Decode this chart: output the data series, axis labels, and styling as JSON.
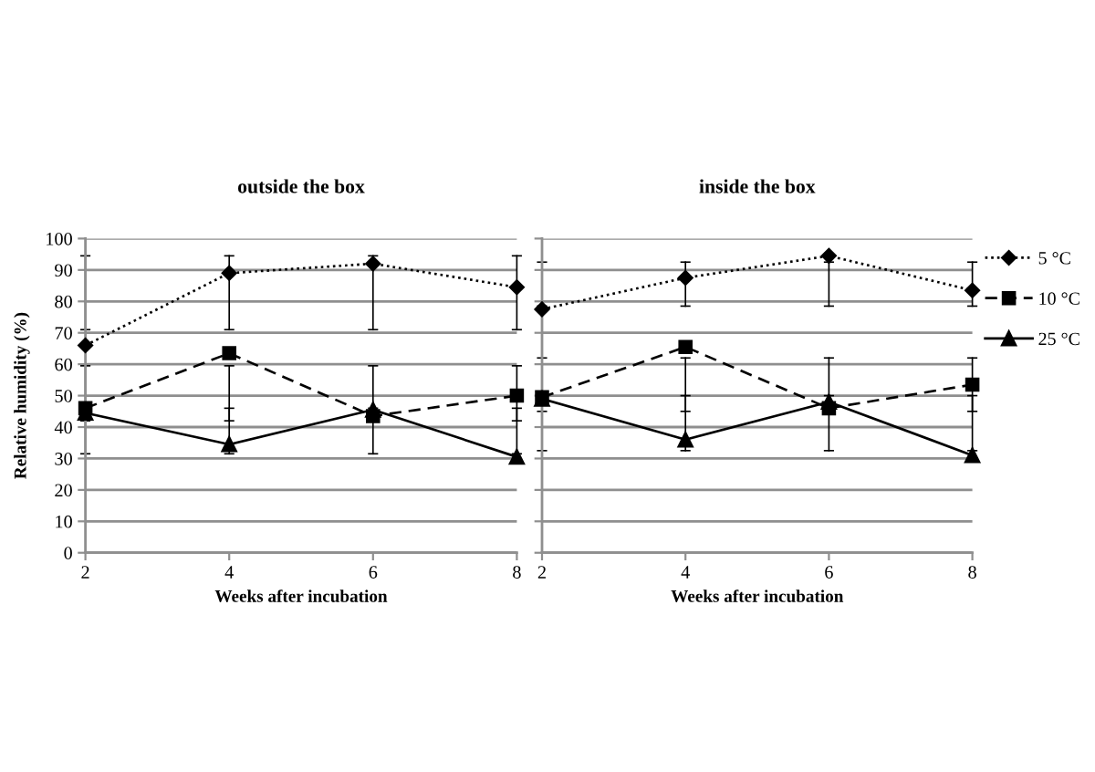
{
  "chart_data": [
    {
      "type": "line",
      "title": "outside the box",
      "xlabel": "Weeks after incubation",
      "ylabel": "Relative humidity (%)",
      "x": [
        2,
        4,
        6,
        8
      ],
      "xlim": [
        2,
        8
      ],
      "xticks": [
        2,
        4,
        6,
        8
      ],
      "ylim": [
        0,
        100
      ],
      "yticks": [
        0,
        10,
        20,
        30,
        40,
        50,
        60,
        70,
        80,
        90,
        100
      ],
      "grid": "y",
      "series": [
        {
          "color": "#000000",
          "marker": "diamond",
          "line_style": "dotted",
          "values": [
            66,
            89,
            92,
            84.5
          ],
          "errors": [
            [
              71,
              94.5
            ],
            [
              71,
              94.5
            ],
            [
              71,
              94.5
            ],
            [
              71,
              94.5
            ]
          ]
        },
        {
          "color": "#000000",
          "marker": "square",
          "line_style": "dashed",
          "values": [
            46,
            63.5,
            43.5,
            50
          ],
          "errors": [
            [
              42,
              59.5
            ],
            [
              42,
              59.5
            ],
            [
              42,
              59.5
            ],
            [
              42,
              59.5
            ]
          ]
        },
        {
          "color": "#000000",
          "marker": "triangle",
          "line_style": "solid",
          "values": [
            44.5,
            34.5,
            45.5,
            30.5
          ],
          "errors": [
            [
              31.5,
              44.5
            ],
            [
              31.5,
              46
            ],
            [
              31.5,
              46
            ],
            [
              31.5,
              46
            ]
          ]
        }
      ]
    },
    {
      "type": "line",
      "title": "inside the box",
      "xlabel": "Weeks after incubation",
      "x": [
        2,
        4,
        6,
        8
      ],
      "xlim": [
        2,
        8
      ],
      "xticks": [
        2,
        4,
        6,
        8
      ],
      "ylim": [
        0,
        100
      ],
      "yticks": [
        0,
        10,
        20,
        30,
        40,
        50,
        60,
        70,
        80,
        90,
        100
      ],
      "grid": "y",
      "tick_labels": "x",
      "legend": "right",
      "series": [
        {
          "name": "5 °C",
          "color": "#000000",
          "marker": "diamond",
          "line_style": "dotted",
          "values": [
            77.5,
            87.5,
            94.5,
            83.5
          ],
          "errors": [
            [
              78.5,
              92.5
            ],
            [
              78.5,
              92.5
            ],
            [
              78.5,
              92.5
            ],
            [
              78.5,
              92.5
            ]
          ]
        },
        {
          "name": "10 °C",
          "color": "#000000",
          "marker": "square",
          "line_style": "dashed",
          "values": [
            49.5,
            65.5,
            46,
            53.5
          ],
          "errors": [
            [
              45,
              62
            ],
            [
              45,
              62
            ],
            [
              45,
              62
            ],
            [
              45,
              62
            ]
          ]
        },
        {
          "name": "25 °C",
          "color": "#000000",
          "marker": "triangle",
          "line_style": "solid",
          "values": [
            49,
            36,
            48,
            31
          ],
          "errors": [
            [
              32.5,
              49
            ],
            [
              32.5,
              50
            ],
            [
              32.5,
              50
            ],
            [
              32.5,
              50
            ]
          ]
        }
      ]
    }
  ]
}
